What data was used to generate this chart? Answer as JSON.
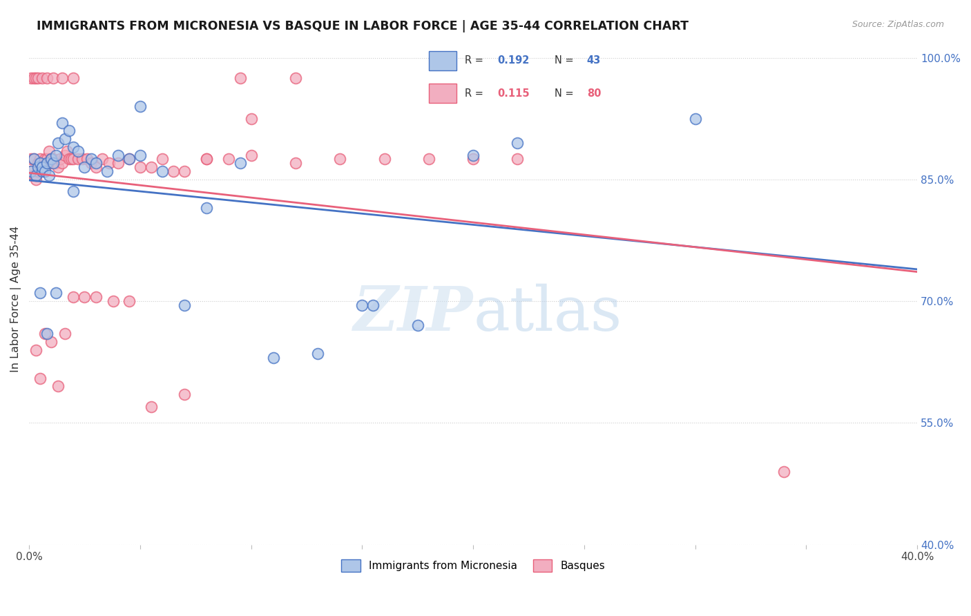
{
  "title": "IMMIGRANTS FROM MICRONESIA VS BASQUE IN LABOR FORCE | AGE 35-44 CORRELATION CHART",
  "source": "Source: ZipAtlas.com",
  "ylabel": "In Labor Force | Age 35-44",
  "xlim": [
    0.0,
    0.4
  ],
  "ylim": [
    0.4,
    1.005
  ],
  "xticks": [
    0.0,
    0.05,
    0.1,
    0.15,
    0.2,
    0.25,
    0.3,
    0.35,
    0.4
  ],
  "xtick_labels": [
    "0.0%",
    "",
    "",
    "",
    "",
    "",
    "",
    "",
    "40.0%"
  ],
  "yticks": [
    0.4,
    0.55,
    0.7,
    0.85,
    1.0
  ],
  "ytick_labels": [
    "40.0%",
    "55.0%",
    "70.0%",
    "85.0%",
    "100.0%"
  ],
  "legend_R1": "0.192",
  "legend_N1": "43",
  "legend_R2": "0.115",
  "legend_N2": "80",
  "blue_color": "#aec6e8",
  "pink_color": "#f2aec0",
  "blue_line_color": "#4472c4",
  "pink_line_color": "#e8607a",
  "watermark_zip": "ZIP",
  "watermark_atlas": "atlas",
  "micronesia_x": [
    0.001,
    0.002,
    0.003,
    0.004,
    0.005,
    0.006,
    0.006,
    0.007,
    0.008,
    0.009,
    0.01,
    0.011,
    0.012,
    0.013,
    0.015,
    0.016,
    0.018,
    0.02,
    0.022,
    0.025,
    0.028,
    0.03,
    0.035,
    0.04,
    0.045,
    0.05,
    0.06,
    0.07,
    0.08,
    0.095,
    0.11,
    0.13,
    0.155,
    0.175,
    0.2,
    0.22,
    0.005,
    0.008,
    0.012,
    0.02,
    0.05,
    0.15,
    0.3
  ],
  "micronesia_y": [
    0.86,
    0.875,
    0.855,
    0.865,
    0.87,
    0.86,
    0.865,
    0.86,
    0.87,
    0.855,
    0.875,
    0.87,
    0.88,
    0.895,
    0.92,
    0.9,
    0.91,
    0.89,
    0.885,
    0.865,
    0.875,
    0.87,
    0.86,
    0.88,
    0.875,
    0.94,
    0.86,
    0.695,
    0.815,
    0.87,
    0.63,
    0.635,
    0.695,
    0.67,
    0.88,
    0.895,
    0.71,
    0.66,
    0.71,
    0.835,
    0.88,
    0.695,
    0.925
  ],
  "basque_x": [
    0.001,
    0.001,
    0.002,
    0.002,
    0.003,
    0.003,
    0.004,
    0.004,
    0.005,
    0.005,
    0.006,
    0.006,
    0.007,
    0.007,
    0.008,
    0.008,
    0.009,
    0.009,
    0.01,
    0.01,
    0.011,
    0.012,
    0.013,
    0.014,
    0.015,
    0.016,
    0.017,
    0.018,
    0.019,
    0.02,
    0.022,
    0.024,
    0.026,
    0.028,
    0.03,
    0.033,
    0.036,
    0.04,
    0.045,
    0.05,
    0.055,
    0.06,
    0.065,
    0.07,
    0.08,
    0.09,
    0.1,
    0.12,
    0.14,
    0.16,
    0.18,
    0.2,
    0.22,
    0.003,
    0.005,
    0.007,
    0.01,
    0.013,
    0.016,
    0.02,
    0.025,
    0.03,
    0.038,
    0.045,
    0.055,
    0.07,
    0.08,
    0.1,
    0.12,
    0.095,
    0.001,
    0.002,
    0.003,
    0.004,
    0.006,
    0.008,
    0.011,
    0.015,
    0.02,
    0.34
  ],
  "basque_y": [
    0.875,
    0.86,
    0.875,
    0.855,
    0.855,
    0.85,
    0.87,
    0.86,
    0.875,
    0.87,
    0.865,
    0.87,
    0.86,
    0.875,
    0.87,
    0.875,
    0.885,
    0.87,
    0.875,
    0.87,
    0.875,
    0.87,
    0.865,
    0.875,
    0.87,
    0.88,
    0.885,
    0.875,
    0.875,
    0.875,
    0.875,
    0.875,
    0.875,
    0.87,
    0.865,
    0.875,
    0.87,
    0.87,
    0.875,
    0.865,
    0.865,
    0.875,
    0.86,
    0.86,
    0.875,
    0.875,
    0.88,
    0.87,
    0.875,
    0.875,
    0.875,
    0.875,
    0.875,
    0.64,
    0.605,
    0.66,
    0.65,
    0.595,
    0.66,
    0.705,
    0.705,
    0.705,
    0.7,
    0.7,
    0.57,
    0.585,
    0.875,
    0.925,
    0.975,
    0.975,
    0.975,
    0.975,
    0.975,
    0.975,
    0.975,
    0.975,
    0.975,
    0.975,
    0.975,
    0.49
  ]
}
